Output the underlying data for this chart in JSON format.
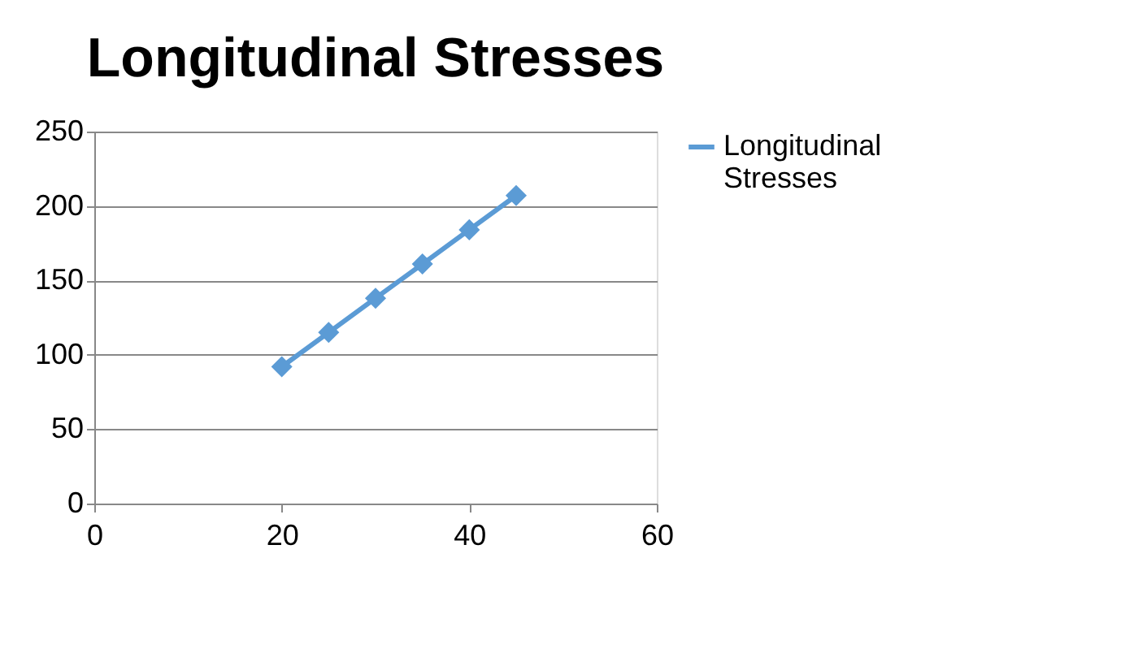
{
  "chart_data": {
    "type": "line",
    "title": "Longitudinal Stresses",
    "x": [
      20,
      25,
      30,
      35,
      40,
      45
    ],
    "series": [
      {
        "name": "Longitudinal Stresses",
        "color": "#5b9bd5",
        "values": [
          92,
          115,
          138,
          161,
          184,
          207
        ]
      }
    ],
    "xlim": [
      0,
      60
    ],
    "xticks": [
      0,
      20,
      40,
      60
    ],
    "ylim": [
      0,
      250
    ],
    "yticks": [
      0,
      50,
      100,
      150,
      200,
      250
    ],
    "grid": "y",
    "legend": "right",
    "marker": "diamond",
    "line_style": "solid"
  }
}
